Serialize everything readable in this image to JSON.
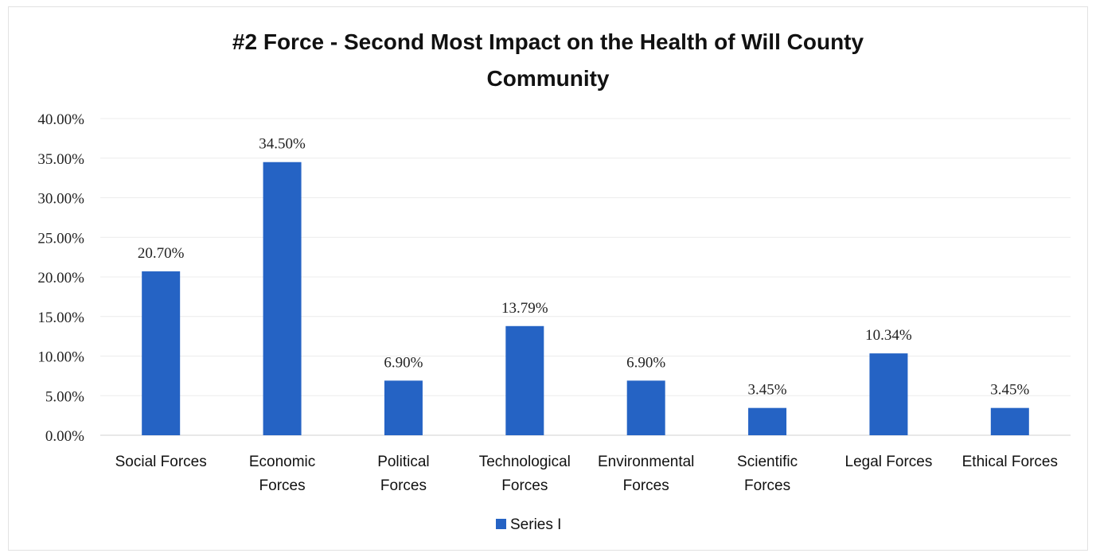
{
  "chart_data": {
    "type": "bar",
    "title_lines": [
      "#2 Force - Second Most Impact on the Health of Will County",
      "Community"
    ],
    "categories": [
      [
        "Social Forces"
      ],
      [
        "Economic",
        "Forces"
      ],
      [
        "Political",
        "Forces"
      ],
      [
        "Technological",
        "Forces"
      ],
      [
        "Environmental",
        "Forces"
      ],
      [
        "Scientific",
        "Forces"
      ],
      [
        "Legal Forces"
      ],
      [
        "Ethical Forces"
      ]
    ],
    "series": [
      {
        "name": "Series I",
        "color": "#2563c4",
        "values": [
          20.7,
          34.5,
          6.9,
          13.79,
          6.9,
          3.45,
          10.34,
          3.45
        ],
        "data_labels": [
          "20.70%",
          "34.50%",
          "6.90%",
          "13.79%",
          "6.90%",
          "3.45%",
          "10.34%",
          "3.45%"
        ]
      }
    ],
    "ylim": [
      0,
      40
    ],
    "yticks": [
      0,
      5,
      10,
      15,
      20,
      25,
      30,
      35,
      40
    ],
    "ytick_labels": [
      "0.00%",
      "5.00%",
      "10.00%",
      "15.00%",
      "20.00%",
      "25.00%",
      "30.00%",
      "35.00%",
      "40.00%"
    ],
    "xlabel": "",
    "ylabel": "",
    "grid": true,
    "legend_position": "bottom"
  }
}
